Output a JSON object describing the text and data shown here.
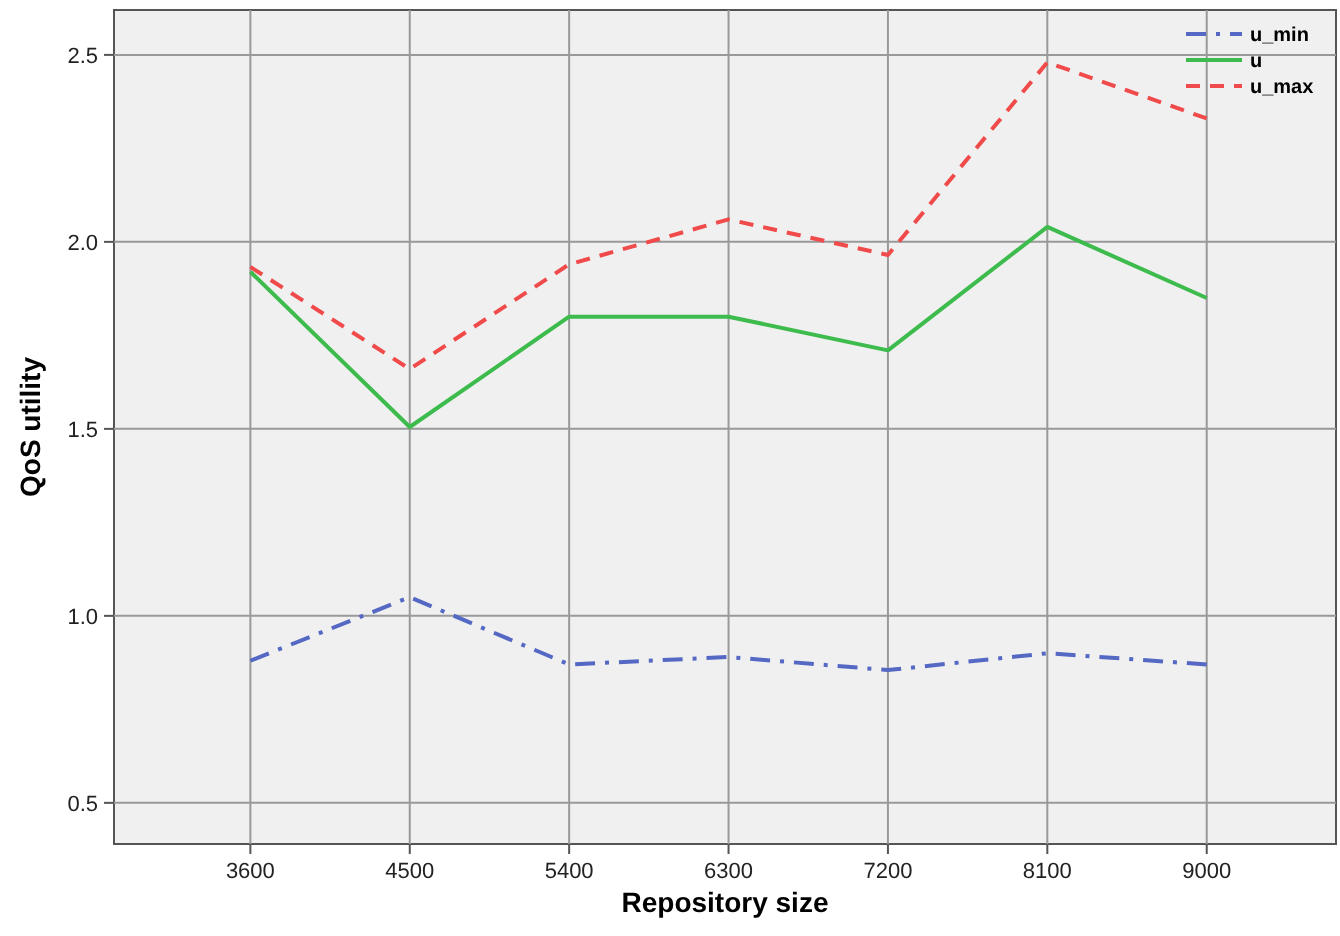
{
  "chart_data": {
    "type": "line",
    "xlabel": "Repository size",
    "ylabel": "QoS utility",
    "x": [
      3600,
      4500,
      5400,
      6300,
      7200,
      8100,
      9000
    ],
    "xlim": [
      2830,
      9730
    ],
    "xticks": [
      3600,
      4500,
      5400,
      6300,
      7200,
      8100,
      9000
    ],
    "ylim": [
      0.39,
      2.62
    ],
    "yticks": [
      {
        "value": 0.5,
        "label": "0.5"
      },
      {
        "value": 1,
        "label": "1.0"
      },
      {
        "value": 1.5,
        "label": "1.5"
      },
      {
        "value": 2,
        "label": "2.0"
      },
      {
        "value": 2.5,
        "label": "2.5"
      }
    ],
    "grid": true,
    "legend": "top right",
    "marker": "none",
    "series": [
      {
        "name": "u_min",
        "color": "#5468c4",
        "line_style": "dashdot",
        "values": [
          0.88,
          1.05,
          0.87,
          0.89,
          0.855,
          0.9,
          0.87
        ]
      },
      {
        "name": "u",
        "color": "#3dbb4c",
        "line_style": "solid",
        "values": [
          1.92,
          1.505,
          1.8,
          1.8,
          1.71,
          2.04,
          1.85
        ]
      },
      {
        "name": "u_max",
        "color": "#f04a4a",
        "line_style": "dashed",
        "values": [
          1.933,
          1.66,
          1.94,
          2.06,
          1.965,
          2.48,
          2.33
        ]
      }
    ]
  }
}
